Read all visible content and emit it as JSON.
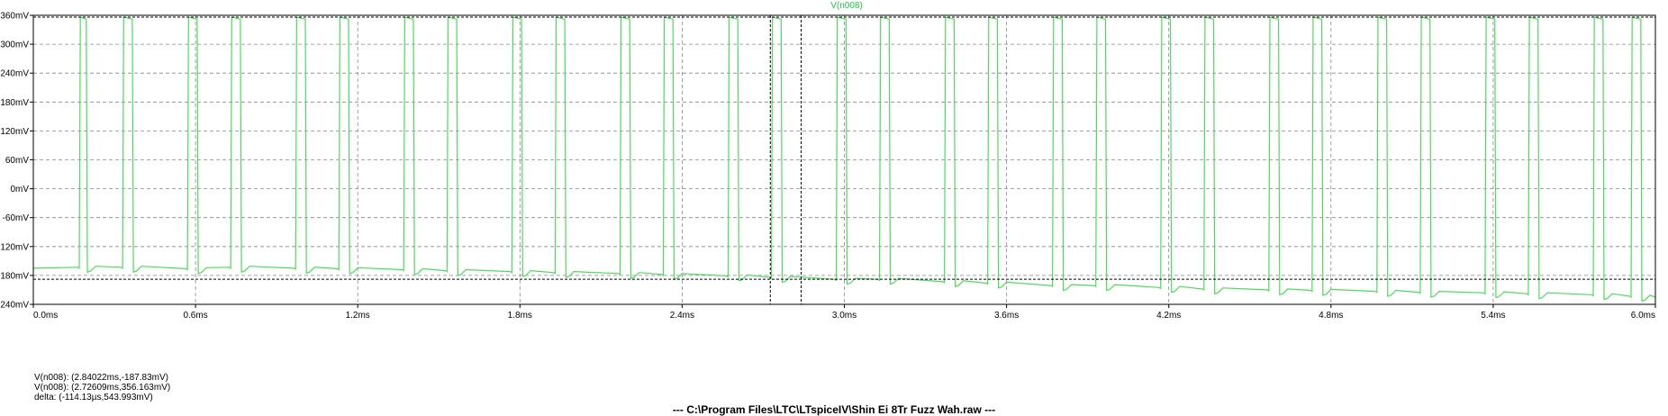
{
  "window": {
    "file_caption": "---   C:\\Program Files\\LTC\\LTspiceIV\\Shin Ei 8Tr Fuzz Wah.raw   ---"
  },
  "cursor_readout": {
    "line1": "V(n008): (2.84022ms,-187.83mV)",
    "line2": "V(n008): (2.72609ms,356.163mV)",
    "line3": "delta: (-114.13µs,543.993mV)"
  },
  "colors": {
    "trace": "#4cdc5a",
    "grid": "#888888",
    "cursor": "#000000",
    "axis": "#000000"
  },
  "chart_data": {
    "type": "line",
    "title": "V(n008)",
    "xlabel": "",
    "ylabel": "",
    "xlim": [
      0,
      6.0
    ],
    "ylim": [
      -240,
      360
    ],
    "grid": true,
    "x_unit": "ms",
    "y_unit": "mV",
    "x_ticks": [
      "0.0ms",
      "0.6ms",
      "1.2ms",
      "1.8ms",
      "2.4ms",
      "3.0ms",
      "3.6ms",
      "4.2ms",
      "4.8ms",
      "5.4ms",
      "6.0ms"
    ],
    "x_tick_values": [
      0,
      0.6,
      1.2,
      1.8,
      2.4,
      3.0,
      3.6,
      4.2,
      4.8,
      5.4,
      6.0
    ],
    "y_ticks": [
      "360mV",
      "300mV",
      "240mV",
      "180mV",
      "120mV",
      "60mV",
      "0mV",
      "-60mV",
      "-120mV",
      "-180mV",
      "-240mV"
    ],
    "y_tick_values": [
      360,
      300,
      240,
      180,
      120,
      60,
      0,
      -60,
      -120,
      -180,
      -240
    ],
    "cursors": [
      {
        "x": 2.84022,
        "y": -187.83
      },
      {
        "x": 2.72609,
        "y": 356.163
      }
    ],
    "series": [
      {
        "name": "V(n008)",
        "pulses": [
          {
            "start": 0.17,
            "end": 0.2,
            "low": -165
          },
          {
            "start": 0.33,
            "end": 0.37,
            "low": -165
          },
          {
            "start": 0.57,
            "end": 0.61,
            "low": -168
          },
          {
            "start": 0.73,
            "end": 0.77,
            "low": -165
          },
          {
            "start": 0.97,
            "end": 1.01,
            "low": -167
          },
          {
            "start": 1.13,
            "end": 1.17,
            "low": -168
          },
          {
            "start": 1.37,
            "end": 1.41,
            "low": -170
          },
          {
            "start": 1.53,
            "end": 1.57,
            "low": -172
          },
          {
            "start": 1.77,
            "end": 1.81,
            "low": -174
          },
          {
            "start": 1.93,
            "end": 1.97,
            "low": -176
          },
          {
            "start": 2.17,
            "end": 2.21,
            "low": -178
          },
          {
            "start": 2.33,
            "end": 2.37,
            "low": -180
          },
          {
            "start": 2.57,
            "end": 2.61,
            "low": -183
          },
          {
            "start": 2.73,
            "end": 2.77,
            "low": -186
          },
          {
            "start": 2.97,
            "end": 3.01,
            "low": -190
          },
          {
            "start": 3.13,
            "end": 3.17,
            "low": -190
          },
          {
            "start": 3.37,
            "end": 3.41,
            "low": -195
          },
          {
            "start": 3.53,
            "end": 3.57,
            "low": -198
          },
          {
            "start": 3.77,
            "end": 3.81,
            "low": -203
          },
          {
            "start": 3.93,
            "end": 3.97,
            "low": -203
          },
          {
            "start": 4.17,
            "end": 4.21,
            "low": -207
          },
          {
            "start": 4.33,
            "end": 4.37,
            "low": -210
          },
          {
            "start": 4.57,
            "end": 4.61,
            "low": -212
          },
          {
            "start": 4.73,
            "end": 4.77,
            "low": -213
          },
          {
            "start": 4.97,
            "end": 5.01,
            "low": -215
          },
          {
            "start": 5.13,
            "end": 5.17,
            "low": -217
          },
          {
            "start": 5.37,
            "end": 5.41,
            "low": -218
          },
          {
            "start": 5.53,
            "end": 5.57,
            "low": -220
          },
          {
            "start": 5.77,
            "end": 5.81,
            "low": -222
          },
          {
            "start": 5.91,
            "end": 5.95,
            "low": -225
          }
        ],
        "high": 356
      }
    ]
  }
}
